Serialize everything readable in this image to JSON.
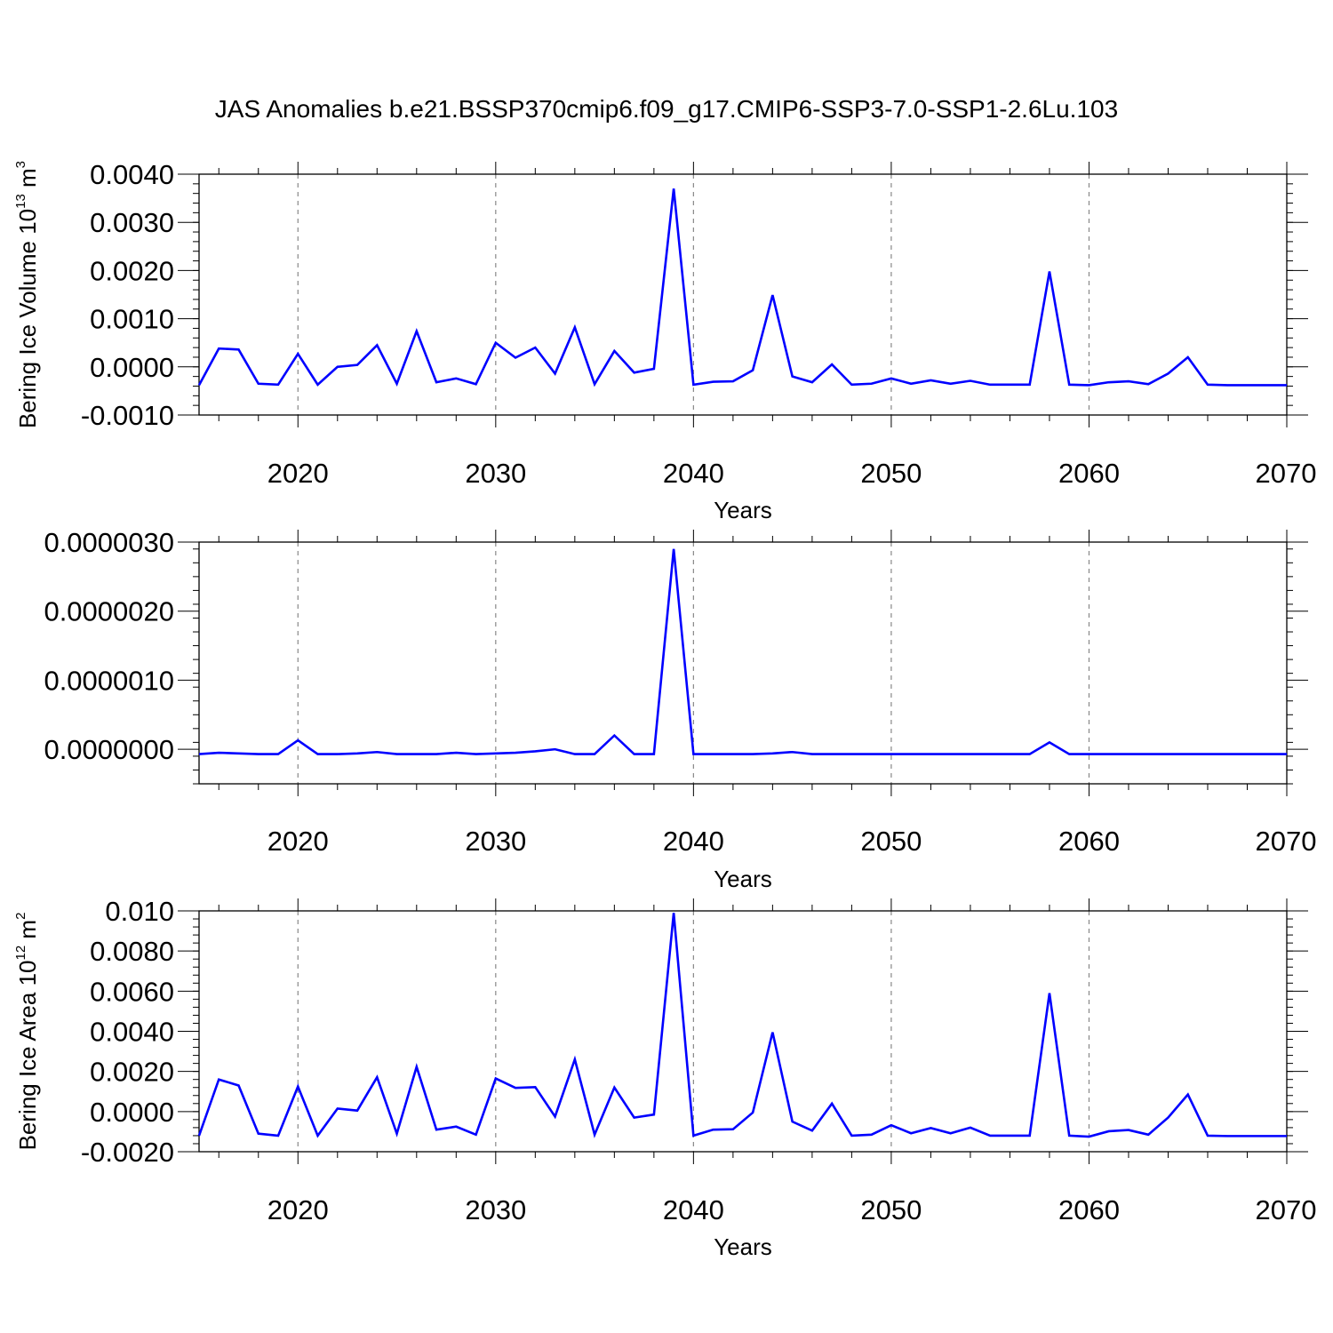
{
  "title": "JAS Anomalies b.e21.BSSP370cmip6.f09_g17.CMIP6-SSP3-7.0-SSP1-2.6Lu.103",
  "chart_data": [
    {
      "type": "line",
      "title": "JAS Anomalies b.e21.BSSP370cmip6.f09_g17.CMIP6-SSP3-7.0-SSP1-2.6Lu.103",
      "xlabel": "Years",
      "ylabel": {
        "base": "Bering Ice Volume 10",
        "exp": "13",
        "unit": " m",
        "unit_exp": "3"
      },
      "xlim": [
        2015,
        2070
      ],
      "ylim": [
        -0.001,
        0.004
      ],
      "grid": "dashed vertical lines at major x ticks",
      "line_color": "#0000ff",
      "xticks": [
        "2020",
        "2030",
        "2040",
        "2050",
        "2060",
        "2070"
      ],
      "yticks": [
        {
          "v": 0.004,
          "label": "0.0040"
        },
        {
          "v": 0.003,
          "label": "0.0030"
        },
        {
          "v": 0.002,
          "label": "0.0020"
        },
        {
          "v": 0.001,
          "label": "0.0010"
        },
        {
          "v": 0.0,
          "label": "0.0000"
        },
        {
          "v": -0.001,
          "label": "-0.0010"
        }
      ],
      "x": [
        2015,
        2016,
        2017,
        2018,
        2019,
        2020,
        2021,
        2022,
        2023,
        2024,
        2025,
        2026,
        2027,
        2028,
        2029,
        2030,
        2031,
        2032,
        2033,
        2034,
        2035,
        2036,
        2037,
        2038,
        2039,
        2040,
        2041,
        2042,
        2043,
        2044,
        2045,
        2046,
        2047,
        2048,
        2049,
        2050,
        2051,
        2052,
        2053,
        2054,
        2055,
        2056,
        2057,
        2058,
        2059,
        2060,
        2061,
        2062,
        2063,
        2064,
        2065,
        2066,
        2067,
        2068,
        2069,
        2070
      ],
      "y": [
        -0.00038,
        0.00038,
        0.00036,
        -0.00035,
        -0.00037,
        0.00027,
        -0.00037,
        0.0,
        4e-05,
        0.00045,
        -0.00035,
        0.00074,
        -0.00032,
        -0.00024,
        -0.00036,
        0.0005,
        0.00019,
        0.0004,
        -0.00014,
        0.00082,
        -0.00036,
        0.00033,
        -0.00012,
        -4e-05,
        0.0037,
        -0.00037,
        -0.00031,
        -0.0003,
        -7e-05,
        0.00149,
        -0.0002,
        -0.00032,
        5e-05,
        -0.00037,
        -0.00035,
        -0.00024,
        -0.00035,
        -0.00028,
        -0.00035,
        -0.00029,
        -0.00037,
        -0.00037,
        -0.00037,
        0.00198,
        -0.00037,
        -0.00038,
        -0.00032,
        -0.0003,
        -0.00036,
        -0.00014,
        0.0002,
        -0.00037,
        -0.00038,
        -0.00038,
        -0.00038,
        -0.00038
      ]
    },
    {
      "type": "line",
      "xlabel": "Years",
      "xlim": [
        2015,
        2070
      ],
      "ylim": [
        -5e-07,
        3e-06
      ],
      "grid": "dashed vertical lines at major x ticks",
      "line_color": "#0000ff",
      "xticks": [
        "2020",
        "2030",
        "2040",
        "2050",
        "2060",
        "2070"
      ],
      "yticks": [
        {
          "v": 3e-06,
          "label": "0.0000030"
        },
        {
          "v": 2e-06,
          "label": "0.0000020"
        },
        {
          "v": 1e-06,
          "label": "0.0000010"
        },
        {
          "v": 0.0,
          "label": "0.0000000"
        }
      ],
      "x": [
        2015,
        2016,
        2017,
        2018,
        2019,
        2020,
        2021,
        2022,
        2023,
        2024,
        2025,
        2026,
        2027,
        2028,
        2029,
        2030,
        2031,
        2032,
        2033,
        2034,
        2035,
        2036,
        2037,
        2038,
        2039,
        2040,
        2041,
        2042,
        2043,
        2044,
        2045,
        2046,
        2047,
        2048,
        2049,
        2050,
        2051,
        2052,
        2053,
        2054,
        2055,
        2056,
        2057,
        2058,
        2059,
        2060,
        2061,
        2062,
        2063,
        2064,
        2065,
        2066,
        2067,
        2068,
        2069,
        2070
      ],
      "y": [
        -7e-08,
        -5e-08,
        -6e-08,
        -7e-08,
        -7e-08,
        1.3e-07,
        -7e-08,
        -7e-08,
        -6e-08,
        -4e-08,
        -7e-08,
        -7e-08,
        -7e-08,
        -5e-08,
        -7e-08,
        -6e-08,
        -5e-08,
        -3e-08,
        0.0,
        -7e-08,
        -7e-08,
        2e-07,
        -7e-08,
        -7e-08,
        2.9e-06,
        -7e-08,
        -7e-08,
        -7e-08,
        -7e-08,
        -6e-08,
        -4e-08,
        -7e-08,
        -7e-08,
        -7e-08,
        -7e-08,
        -7e-08,
        -7e-08,
        -7e-08,
        -7e-08,
        -7e-08,
        -7e-08,
        -7e-08,
        -7e-08,
        1e-07,
        -7e-08,
        -7e-08,
        -7e-08,
        -7e-08,
        -7e-08,
        -7e-08,
        -7e-08,
        -7e-08,
        -7e-08,
        -7e-08,
        -7e-08,
        -7e-08
      ]
    },
    {
      "type": "line",
      "xlabel": "Years",
      "ylabel": {
        "base": "Bering Ice Area 10",
        "exp": "12",
        "unit": " m",
        "unit_exp": "2"
      },
      "xlim": [
        2015,
        2070
      ],
      "ylim": [
        -0.002,
        0.01
      ],
      "grid": "dashed vertical lines at major x ticks",
      "line_color": "#0000ff",
      "xticks": [
        "2020",
        "2030",
        "2040",
        "2050",
        "2060",
        "2070"
      ],
      "yticks": [
        {
          "v": 0.01,
          "label": "0.010"
        },
        {
          "v": 0.008,
          "label": "0.0080"
        },
        {
          "v": 0.006,
          "label": "0.0060"
        },
        {
          "v": 0.004,
          "label": "0.0040"
        },
        {
          "v": 0.002,
          "label": "0.0020"
        },
        {
          "v": 0.0,
          "label": "0.0000"
        },
        {
          "v": -0.002,
          "label": "-0.0020"
        }
      ],
      "x": [
        2015,
        2016,
        2017,
        2018,
        2019,
        2020,
        2021,
        2022,
        2023,
        2024,
        2025,
        2026,
        2027,
        2028,
        2029,
        2030,
        2031,
        2032,
        2033,
        2034,
        2035,
        2036,
        2037,
        2038,
        2039,
        2040,
        2041,
        2042,
        2043,
        2044,
        2045,
        2046,
        2047,
        2048,
        2049,
        2050,
        2051,
        2052,
        2053,
        2054,
        2055,
        2056,
        2057,
        2058,
        2059,
        2060,
        2061,
        2062,
        2063,
        2064,
        2065,
        2066,
        2067,
        2068,
        2069,
        2070
      ],
      "y": [
        -0.0012,
        0.0016,
        0.0013,
        -0.0011,
        -0.0012,
        0.00125,
        -0.0012,
        0.00015,
        5e-05,
        0.00171,
        -0.0011,
        0.00223,
        -0.0009,
        -0.00075,
        -0.00115,
        0.00165,
        0.00118,
        0.00122,
        -0.00025,
        0.0026,
        -0.00115,
        0.0012,
        -0.0003,
        -0.00015,
        0.0099,
        -0.0012,
        -0.0009,
        -0.00088,
        -5e-05,
        0.00395,
        -0.0005,
        -0.00095,
        0.0004,
        -0.0012,
        -0.00115,
        -0.00068,
        -0.00108,
        -0.00082,
        -0.00108,
        -0.0008,
        -0.0012,
        -0.0012,
        -0.0012,
        0.0059,
        -0.0012,
        -0.00125,
        -0.00098,
        -0.00092,
        -0.00115,
        -0.0003,
        0.00085,
        -0.0012,
        -0.00122,
        -0.00122,
        -0.00122,
        -0.00122
      ]
    }
  ]
}
